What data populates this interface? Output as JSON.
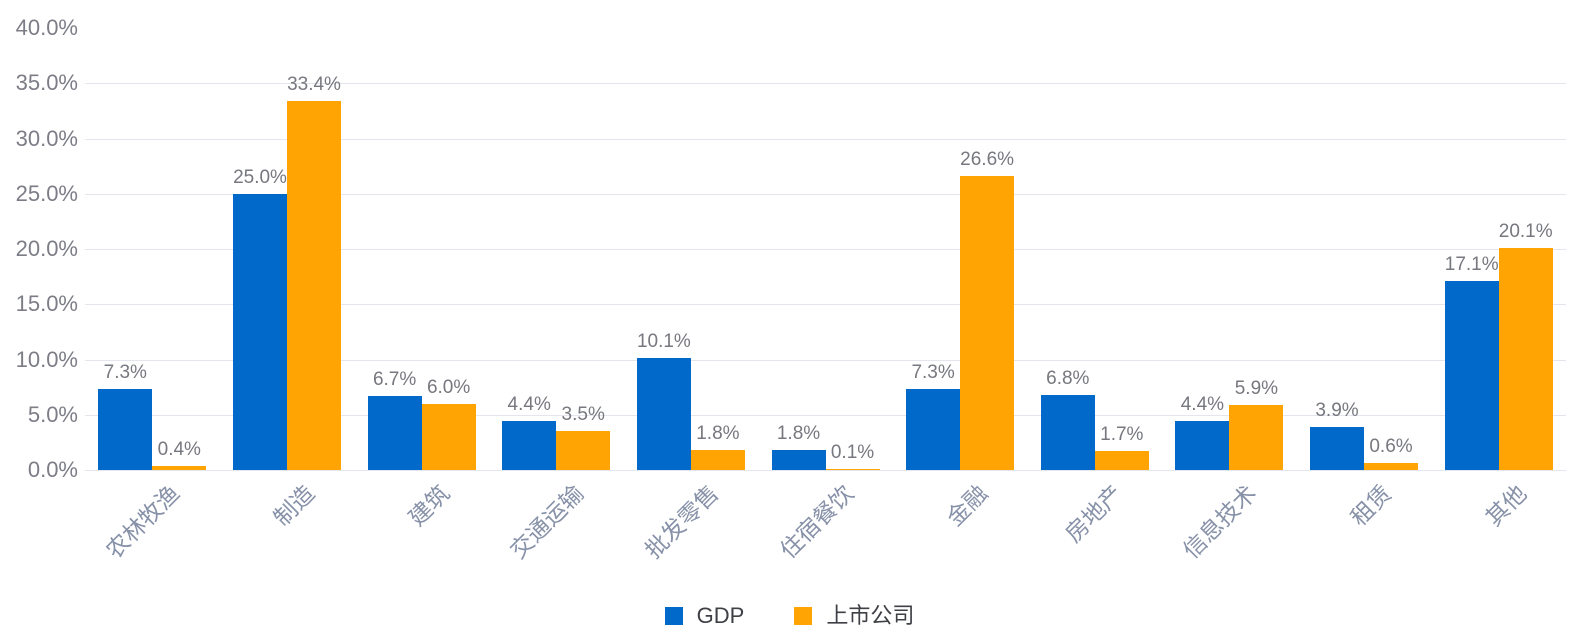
{
  "chart_data": {
    "type": "bar",
    "title": "",
    "categories": [
      "农林牧渔",
      "制造",
      "建筑",
      "交通运输",
      "批发零售",
      "住宿餐饮",
      "金融",
      "房地产",
      "信息技术",
      "租赁",
      "其他"
    ],
    "series": [
      {
        "name": "GDP",
        "color": "#0069C9",
        "values": [
          7.3,
          25.0,
          6.7,
          4.4,
          10.1,
          1.8,
          7.3,
          6.8,
          4.4,
          3.9,
          17.1
        ]
      },
      {
        "name": "上市公司",
        "color": "#FFA402",
        "values": [
          0.4,
          33.4,
          6.0,
          3.5,
          1.8,
          0.1,
          26.6,
          1.7,
          5.9,
          0.6,
          20.1
        ]
      }
    ],
    "data_labels": [
      [
        "7.3%",
        "25.0%",
        "6.7%",
        "4.4%",
        "10.1%",
        "1.8%",
        "7.3%",
        "6.8%",
        "4.4%",
        "3.9%",
        "17.1%"
      ],
      [
        "0.4%",
        "33.4%",
        "6.0%",
        "3.5%",
        "1.8%",
        "0.1%",
        "26.6%",
        "1.7%",
        "5.9%",
        "0.6%",
        "20.1%"
      ]
    ],
    "xlabel": "",
    "ylabel": "",
    "ylim": [
      0,
      40
    ],
    "y_tick_step": 5,
    "y_ticks": [
      "0.0%",
      "5.0%",
      "10.0%",
      "15.0%",
      "20.0%",
      "25.0%",
      "30.0%",
      "35.0%",
      "40.0%"
    ],
    "grid": true,
    "legend_position": "bottom"
  },
  "legend": {
    "items": [
      {
        "label": "GDP",
        "color": "#0069C9"
      },
      {
        "label": "上市公司",
        "color": "#FFA402"
      }
    ]
  },
  "colors": {
    "background": "#FFFFFF",
    "gdp_bar": "#0069C9",
    "listed_company_bar": "#FFA402",
    "gridline": "#E3E6EC",
    "y_tick_text": "#7C7D86",
    "x_tick_text": "#8791A8",
    "data_label_text": "#77787F",
    "legend_text": "#3E4046"
  }
}
